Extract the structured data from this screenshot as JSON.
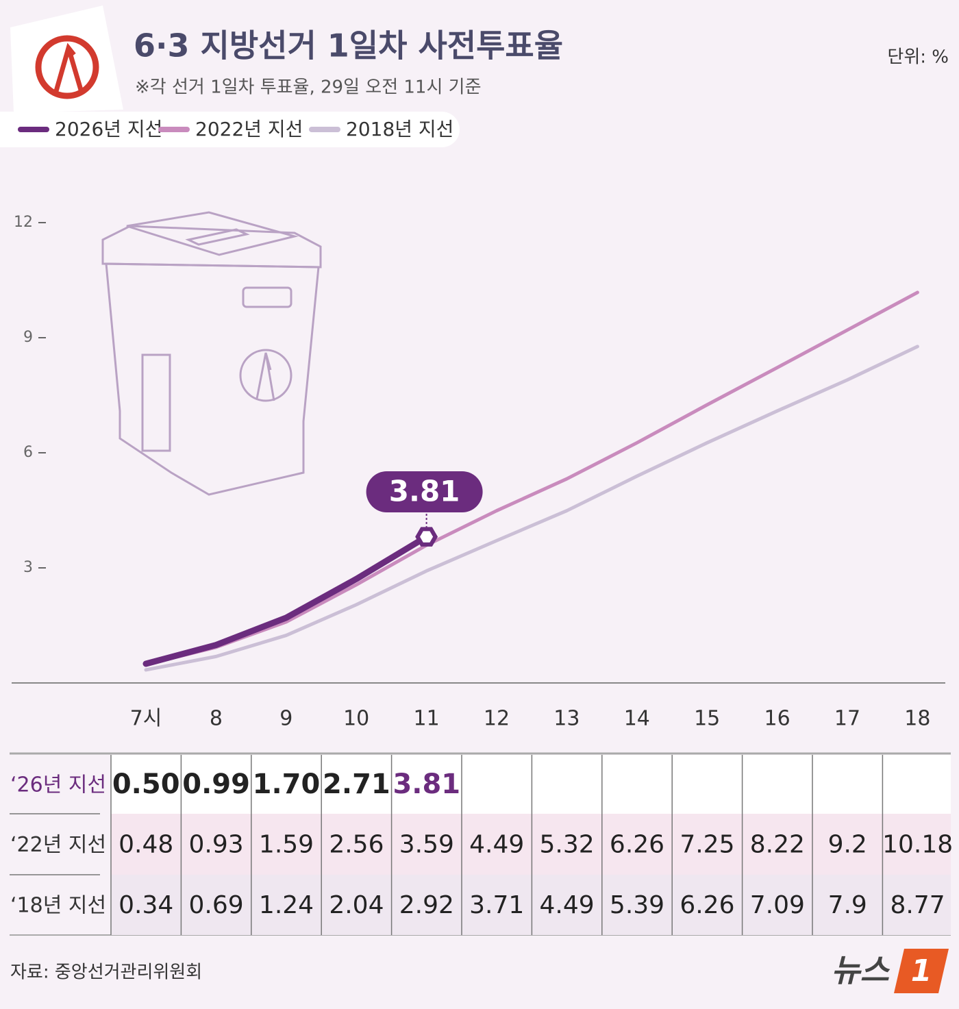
{
  "chart_data": {
    "type": "line",
    "title": "6·3 지방선거 1일차 사전투표율",
    "subtitle": "※각 선거 1일차 투표율, 29일 오전 11시 기준",
    "unit_label": "단위: %",
    "categories": [
      "7시",
      "8",
      "9",
      "10",
      "11",
      "12",
      "13",
      "14",
      "15",
      "16",
      "17",
      "18"
    ],
    "series": [
      {
        "name": "2026년 지선",
        "color": "#6b2c7e",
        "values": [
          0.5,
          0.99,
          1.7,
          2.71,
          3.81,
          null,
          null,
          null,
          null,
          null,
          null,
          null
        ],
        "value_labels": [
          "0.50",
          "0.99",
          "1.70",
          "2.71",
          "3.81",
          null,
          null,
          null,
          null,
          null,
          null,
          null
        ]
      },
      {
        "name": "2022년 지선",
        "color": "#c98bbd",
        "values": [
          0.48,
          0.93,
          1.59,
          2.56,
          3.59,
          4.49,
          5.32,
          6.26,
          7.25,
          8.22,
          9.2,
          10.18
        ]
      },
      {
        "name": "2018년 지선",
        "color": "#cbbfd6",
        "values": [
          0.34,
          0.69,
          1.24,
          2.04,
          2.92,
          3.71,
          4.49,
          5.39,
          6.26,
          7.09,
          7.9,
          8.77
        ]
      }
    ],
    "ylim": [
      0,
      12
    ],
    "yticks": [
      3,
      6,
      9,
      12
    ],
    "row_labels": [
      "‘26년 지선",
      "‘22년 지선",
      "‘18년 지선"
    ],
    "source": "자료: 중앙선거관리위원회"
  },
  "logo": {
    "text": "뉴스",
    "number": "1"
  }
}
